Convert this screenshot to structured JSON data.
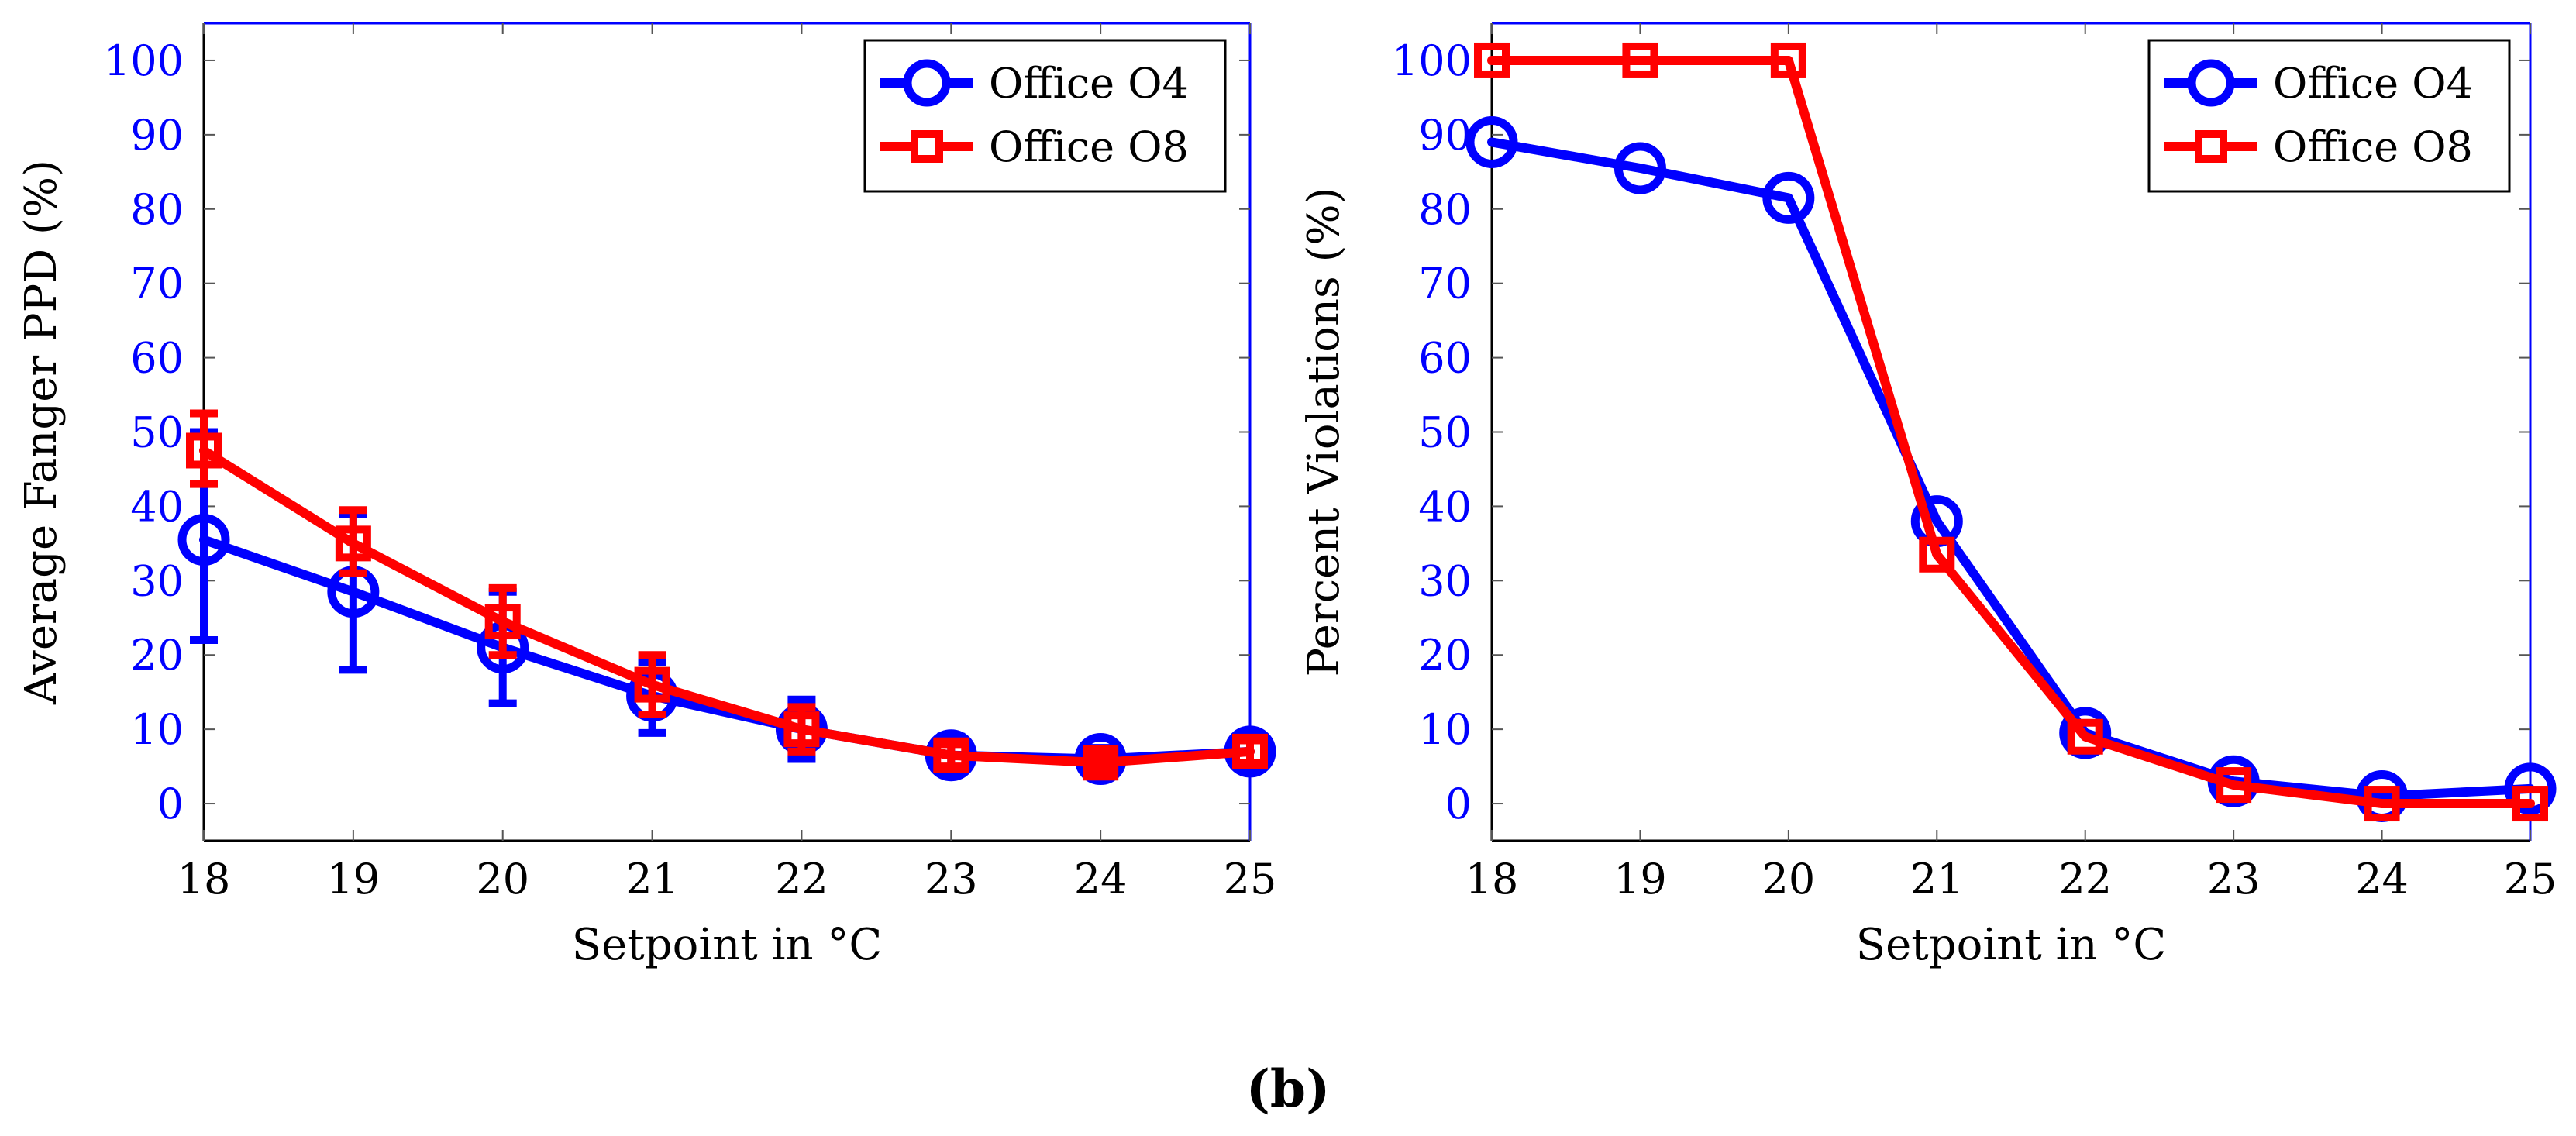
{
  "colors": {
    "office_o4": "#0000ff",
    "office_o8": "#ff0000",
    "axis": "#0000ff",
    "text": "#000000"
  },
  "caption": "(b)",
  "chart_data": [
    {
      "type": "line",
      "xlabel": "Setpoint in  °C",
      "ylabel": "Average Fanger PPD (%)",
      "x": [
        18,
        19,
        20,
        21,
        22,
        23,
        24,
        25
      ],
      "xlim": [
        18,
        25
      ],
      "ylim": [
        -5,
        105
      ],
      "xticks": [
        "18",
        "19",
        "20",
        "21",
        "22",
        "23",
        "24",
        "25"
      ],
      "yticks": [
        "0",
        "10",
        "20",
        "30",
        "40",
        "50",
        "60",
        "70",
        "80",
        "90",
        "100"
      ],
      "grid": false,
      "legend_position": "top-right",
      "series": [
        {
          "name": "Office O4",
          "marker": "circle",
          "values": [
            35.5,
            28.5,
            21,
            14.5,
            10,
            6.5,
            6,
            7
          ],
          "error_low": [
            22,
            18,
            13.5,
            9.5,
            6,
            4.5,
            4.5,
            5.5
          ],
          "error_high": [
            50,
            39,
            28.5,
            19,
            14,
            9,
            7.5,
            8.5
          ]
        },
        {
          "name": "Office O8",
          "marker": "square",
          "values": [
            47.5,
            35,
            24.5,
            16,
            10,
            6.5,
            5.5,
            7
          ],
          "error_low": [
            43,
            31,
            20,
            12,
            7,
            5,
            4.5,
            5.5
          ],
          "error_high": [
            52.5,
            39.5,
            29,
            20,
            13,
            8,
            6.5,
            8.5
          ]
        }
      ]
    },
    {
      "type": "line",
      "xlabel": "Setpoint in  °C",
      "ylabel": "Percent Violations (%)",
      "x": [
        18,
        19,
        20,
        21,
        22,
        23,
        24,
        25
      ],
      "xlim": [
        18,
        25
      ],
      "ylim": [
        -5,
        105
      ],
      "xticks": [
        "18",
        "19",
        "20",
        "21",
        "22",
        "23",
        "24",
        "25"
      ],
      "yticks": [
        "0",
        "10",
        "20",
        "30",
        "40",
        "50",
        "60",
        "70",
        "80",
        "90",
        "100"
      ],
      "grid": false,
      "legend_position": "top-right",
      "series": [
        {
          "name": "Office O4",
          "marker": "circle",
          "values": [
            89,
            85.5,
            81.5,
            38,
            9.5,
            3,
            1,
            2
          ]
        },
        {
          "name": "Office O8",
          "marker": "square",
          "values": [
            100,
            100,
            100,
            33.5,
            9,
            2.5,
            0,
            0
          ]
        }
      ]
    }
  ]
}
